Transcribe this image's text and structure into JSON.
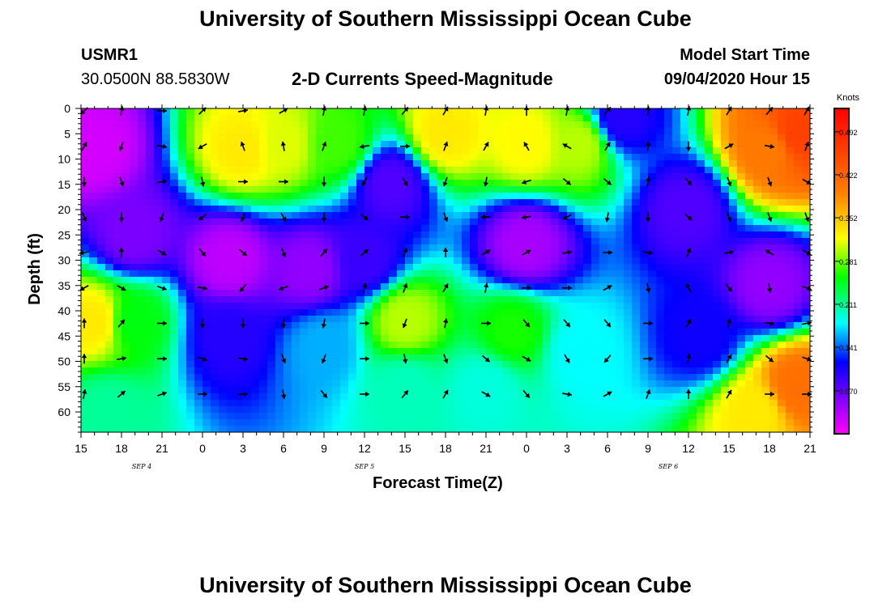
{
  "page": {
    "title_top": "University of Southern Mississippi Ocean Cube",
    "title_bottom": "University of Southern Mississippi Ocean Cube",
    "station_id": "USMR1",
    "station_coords": "30.0500N 88.5830W",
    "subtitle": "2-D Currents Speed-Magnitude",
    "model_start_label": "Model Start Time",
    "model_start_value": "09/04/2020 Hour 15"
  },
  "chart_data": {
    "type": "heatmap",
    "title": "2-D Currents Speed-Magnitude",
    "xlabel": "Forecast Time(Z)",
    "ylabel": "Depth (ft)",
    "x_tick_labels": [
      "15",
      "18",
      "21",
      "0",
      "3",
      "6",
      "9",
      "12",
      "15",
      "18",
      "21",
      "0",
      "3",
      "6",
      "9",
      "12",
      "15",
      "18",
      "21"
    ],
    "x_range_hours": [
      0,
      54
    ],
    "date_labels": [
      {
        "text": "SEP 4",
        "hour": 4.5
      },
      {
        "text": "SEP 5",
        "hour": 21
      },
      {
        "text": "SEP 6",
        "hour": 43.5
      }
    ],
    "y_tick_labels": [
      "0",
      "5",
      "10",
      "15",
      "20",
      "25",
      "30",
      "35",
      "40",
      "45",
      "50",
      "55",
      "60"
    ],
    "ylim": [
      0,
      64
    ],
    "y_inverted": true,
    "colorbar": {
      "unit_label": "Knots",
      "tick_labels": [
        "0.492",
        "0.422",
        "0.352",
        "0.281",
        "0.211",
        "0.141",
        "0.070"
      ],
      "tick_values": [
        0.492,
        0.422,
        0.352,
        0.281,
        0.211,
        0.141,
        0.07
      ],
      "range": [
        0,
        0.53
      ],
      "colors": [
        "#ff00ff",
        "#8000ff",
        "#0000ff",
        "#00ffff",
        "#00ff00",
        "#ffff00",
        "#ff8000",
        "#ff0000"
      ]
    },
    "speed_field": [
      {
        "t": 1,
        "d": 8,
        "v": 0.02
      },
      {
        "t": 4,
        "d": 25,
        "v": 0.06
      },
      {
        "t": 1,
        "d": 42,
        "v": 0.33
      },
      {
        "t": 4,
        "d": 42,
        "v": 0.25
      },
      {
        "t": 2,
        "d": 60,
        "v": 0.21
      },
      {
        "t": 12,
        "d": 8,
        "v": 0.33
      },
      {
        "t": 15,
        "d": 7,
        "v": 0.31
      },
      {
        "t": 19,
        "d": 7,
        "v": 0.27
      },
      {
        "t": 11,
        "d": 30,
        "v": 0.03
      },
      {
        "t": 17,
        "d": 32,
        "v": 0.05
      },
      {
        "t": 11,
        "d": 45,
        "v": 0.1
      },
      {
        "t": 18,
        "d": 47,
        "v": 0.16
      },
      {
        "t": 21,
        "d": 30,
        "v": 0.09
      },
      {
        "t": 24,
        "d": 42,
        "v": 0.3
      },
      {
        "t": 24,
        "d": 55,
        "v": 0.2
      },
      {
        "t": 23,
        "d": 15,
        "v": 0.08
      },
      {
        "t": 27,
        "d": 5,
        "v": 0.33
      },
      {
        "t": 33,
        "d": 7,
        "v": 0.32
      },
      {
        "t": 37,
        "d": 7,
        "v": 0.3
      },
      {
        "t": 33,
        "d": 27,
        "v": 0.04
      },
      {
        "t": 32,
        "d": 44,
        "v": 0.26
      },
      {
        "t": 30,
        "d": 55,
        "v": 0.19
      },
      {
        "t": 37,
        "d": 48,
        "v": 0.18
      },
      {
        "t": 40,
        "d": 2,
        "v": 0.1
      },
      {
        "t": 45,
        "d": 20,
        "v": 0.08
      },
      {
        "t": 46,
        "d": 45,
        "v": 0.11
      },
      {
        "t": 51,
        "d": 8,
        "v": 0.4
      },
      {
        "t": 53,
        "d": 5,
        "v": 0.46
      },
      {
        "t": 51,
        "d": 35,
        "v": 0.05
      },
      {
        "t": 53,
        "d": 55,
        "v": 0.41
      },
      {
        "t": 50,
        "d": 60,
        "v": 0.33
      }
    ],
    "vector_directions_deg": [
      [
        225,
        10,
        90,
        45,
        80,
        60,
        10,
        10,
        40,
        30,
        10,
        0,
        10,
        40,
        5,
        10,
        30,
        40,
        30
      ],
      [
        30,
        200,
        100,
        240,
        340,
        350,
        20,
        260,
        90,
        20,
        30,
        330,
        300,
        30,
        5,
        180,
        60,
        100,
        20
      ],
      [
        180,
        160,
        80,
        170,
        90,
        90,
        180,
        210,
        150,
        200,
        190,
        250,
        130,
        130,
        10,
        140,
        160,
        160,
        120
      ],
      [
        160,
        180,
        200,
        230,
        200,
        150,
        180,
        130,
        90,
        160,
        270,
        260,
        240,
        190,
        180,
        130,
        160,
        160,
        160
      ],
      [
        260,
        0,
        120,
        140,
        130,
        160,
        40,
        50,
        20,
        0,
        60,
        60,
        80,
        90,
        100,
        20,
        80,
        300,
        120
      ],
      [
        240,
        120,
        110,
        100,
        220,
        250,
        70,
        10,
        20,
        30,
        10,
        90,
        90,
        60,
        170,
        330,
        140,
        170,
        110
      ],
      [
        0,
        40,
        90,
        180,
        180,
        180,
        190,
        90,
        200,
        10,
        90,
        140,
        140,
        140,
        90,
        30,
        10,
        100,
        80
      ],
      [
        0,
        80,
        90,
        110,
        100,
        160,
        200,
        90,
        170,
        160,
        130,
        120,
        150,
        220,
        90,
        10,
        30,
        130,
        110
      ],
      [
        10,
        50,
        70,
        90,
        90,
        170,
        140,
        90,
        40,
        30,
        120,
        140,
        100,
        60,
        20,
        0,
        30,
        90,
        90
      ]
    ],
    "vector_depths": [
      0,
      7,
      14,
      21,
      28,
      35,
      42,
      49,
      56
    ]
  }
}
